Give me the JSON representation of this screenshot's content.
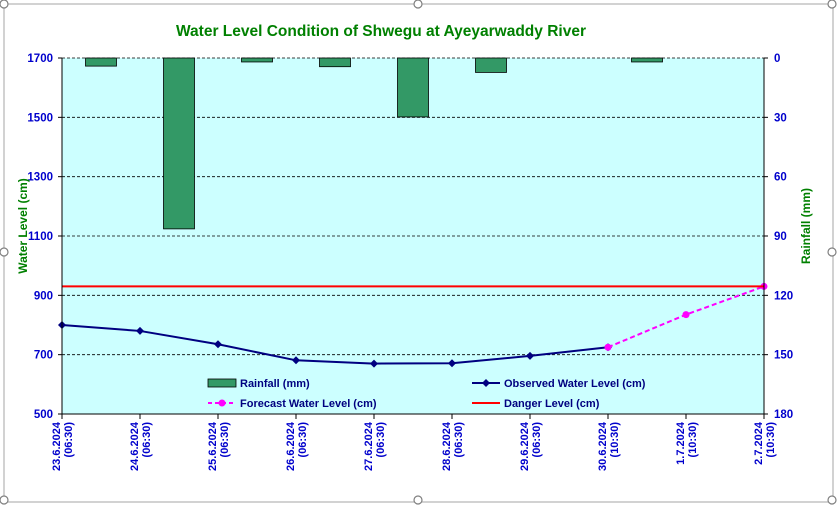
{
  "chart_data": {
    "type": "bar-line-combo",
    "title": "Water Level Condition of Shwegu at Ayeyarwaddy River",
    "categories": [
      "23.6.2024\n(06:30)",
      "24.6.2024\n(06:30)",
      "25.6.2024\n(06:30)",
      "26.6.2024\n(06:30)",
      "27.6.2024\n(06:30)",
      "28.6.2024\n(06:30)",
      "29.6.2024\n(06:30)",
      "30.6.2024\n(10:30)",
      "1.7.2024\n(10:30)",
      "2.7.2024\n(10:30)"
    ],
    "ylabel_left": "Water Level (cm)",
    "ylabel_right": "Rainfall (mm)",
    "ylim_left": [
      500,
      1700
    ],
    "yticks_left": [
      500,
      700,
      900,
      1100,
      1300,
      1500,
      1700
    ],
    "ylim_right": [
      0,
      180
    ],
    "yticks_right": [
      0,
      30,
      60,
      90,
      120,
      150,
      180
    ],
    "right_axis_reversed": true,
    "grid": "horizontal dashed",
    "legend_position": "bottom inside plot",
    "series": [
      {
        "name": "Rainfall (mm)",
        "type": "bar",
        "axis": "right",
        "color": "#339966",
        "values": [
          4.1,
          86.4,
          2.0,
          4.4,
          29.8,
          7.3,
          0,
          2.0,
          0,
          0
        ]
      },
      {
        "name": "Observed Water Level (cm)",
        "type": "line",
        "axis": "left",
        "color": "#000080",
        "marker": "diamond",
        "values": [
          800,
          780,
          735,
          681,
          670,
          671,
          696,
          725,
          null,
          null
        ]
      },
      {
        "name": "Forecast Water Level (cm)",
        "type": "line",
        "axis": "left",
        "color": "#ff00ff",
        "dashed": true,
        "marker": "circle",
        "values": [
          null,
          null,
          null,
          null,
          null,
          null,
          null,
          725,
          835,
          930
        ]
      },
      {
        "name": "Danger Level (cm)",
        "type": "line",
        "axis": "left",
        "color": "#ff0000",
        "values": [
          930,
          930,
          930,
          930,
          930,
          930,
          930,
          930,
          930,
          930
        ]
      }
    ]
  },
  "colors": {
    "plot_bg": "#ccffff",
    "title": "#008000",
    "axis_title": "#008000",
    "tick_labels": "#0000cc",
    "legend_text": "#000080"
  }
}
